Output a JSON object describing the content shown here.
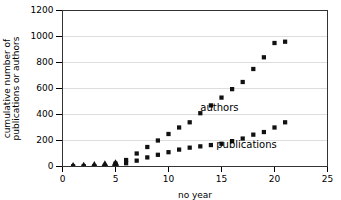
{
  "chart_data": {
    "type": "scatter",
    "xlabel": "no year",
    "ylabel": "cumulative number of\npublications or authors",
    "xlim": [
      0,
      25
    ],
    "ylim": [
      0,
      1200
    ],
    "xticks": [
      0,
      5,
      10,
      15,
      20,
      25
    ],
    "yticks": [
      0,
      200,
      400,
      600,
      800,
      1000,
      1200
    ],
    "grid": "y",
    "series": [
      {
        "x": [
          1,
          2,
          3,
          4,
          5
        ],
        "values": [
          2,
          4,
          8,
          14,
          22
        ],
        "marker": "triangle",
        "color": "#111111"
      },
      {
        "x": [
          5,
          6,
          7,
          8,
          9,
          10,
          11,
          12,
          13,
          14,
          15,
          16,
          17,
          18,
          19,
          20,
          21
        ],
        "values": [
          22,
          50,
          100,
          150,
          200,
          250,
          300,
          340,
          410,
          470,
          530,
          595,
          650,
          750,
          840,
          950,
          960
        ],
        "marker": "square",
        "color": "#111111"
      },
      {
        "x": [
          1,
          2,
          3,
          4,
          5,
          6,
          7,
          8,
          9,
          10,
          11,
          12,
          13,
          14,
          15,
          16,
          17,
          18,
          19,
          20,
          21
        ],
        "values": [
          1,
          2,
          3,
          5,
          8,
          25,
          45,
          70,
          90,
          110,
          130,
          145,
          155,
          165,
          175,
          195,
          215,
          245,
          265,
          300,
          340
        ],
        "marker": "square",
        "color": "#111111"
      }
    ],
    "annotations": [
      {
        "text": "authors",
        "x": 13.0,
        "y": 430
      },
      {
        "text": "publications",
        "x": 14.5,
        "y": 145
      }
    ]
  }
}
